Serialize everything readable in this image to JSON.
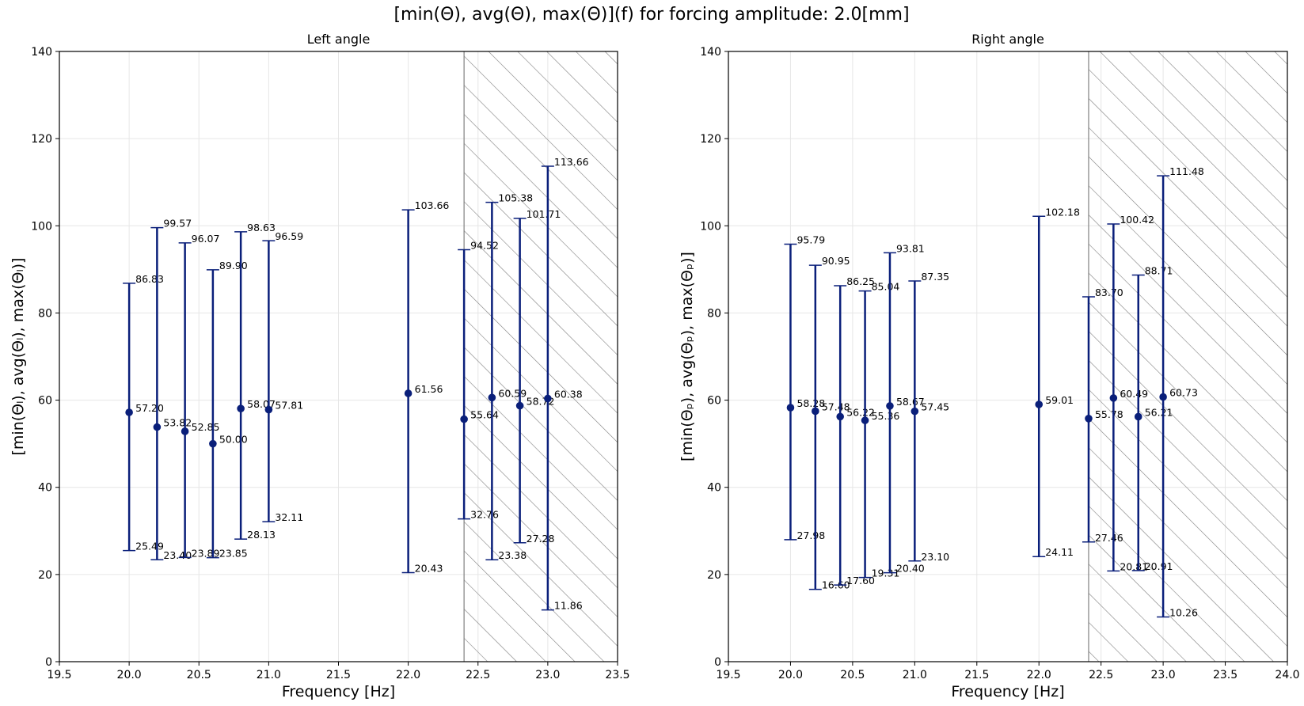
{
  "figure": {
    "suptitle": "[min(Θ), avg(Θ), max(Θ)](f) for forcing amplitude: 2.0[mm]"
  },
  "colors": {
    "series": "#0a1f7a",
    "hatch": "#808080",
    "grid": "#e6e6e6",
    "axes": "#000000"
  },
  "chart_data": [
    {
      "type": "scatter",
      "title": "Left angle",
      "xlabel": "Frequency [Hz]",
      "ylabel": "[min(Θₗ), avg(Θₗ), max(Θₗ)]",
      "xlim": [
        19.5,
        23.5
      ],
      "ylim": [
        0,
        140
      ],
      "xticks": [
        "19.5",
        "20.0",
        "20.5",
        "21.0",
        "21.5",
        "22.0",
        "22.5",
        "23.0",
        "23.5"
      ],
      "yticks": [
        "0",
        "20",
        "40",
        "60",
        "80",
        "100",
        "120",
        "140"
      ],
      "grid": true,
      "hatched_region": [
        22.4,
        23.5
      ],
      "points": [
        {
          "x": 20.0,
          "min": 25.49,
          "avg": 57.2,
          "max": 86.83,
          "min_label": "25.49",
          "avg_label": "57.20",
          "max_label": "86.83"
        },
        {
          "x": 20.2,
          "min": 23.4,
          "avg": 53.82,
          "max": 99.57,
          "min_label": "23.40",
          "avg_label": "53.82",
          "max_label": "99.57"
        },
        {
          "x": 20.4,
          "min": 23.89,
          "avg": 52.85,
          "max": 96.07,
          "min_label": "23.89",
          "avg_label": "52.85",
          "max_label": "96.07"
        },
        {
          "x": 20.6,
          "min": 23.85,
          "avg": 50.0,
          "max": 89.9,
          "min_label": "23.85",
          "avg_label": "50.00",
          "max_label": "89.90"
        },
        {
          "x": 20.8,
          "min": 28.13,
          "avg": 58.07,
          "max": 98.63,
          "min_label": "28.13",
          "avg_label": "58.07",
          "max_label": "98.63"
        },
        {
          "x": 21.0,
          "min": 32.11,
          "avg": 57.81,
          "max": 96.59,
          "min_label": "32.11",
          "avg_label": "57.81",
          "max_label": "96.59"
        },
        {
          "x": 22.0,
          "min": 20.43,
          "avg": 61.56,
          "max": 103.66,
          "min_label": "20.43",
          "avg_label": "61.56",
          "max_label": "103.66"
        },
        {
          "x": 22.4,
          "min": 32.76,
          "avg": 55.64,
          "max": 94.52,
          "min_label": "32.76",
          "avg_label": "55.64",
          "max_label": "94.52"
        },
        {
          "x": 22.6,
          "min": 23.38,
          "avg": 60.59,
          "max": 105.38,
          "min_label": "23.38",
          "avg_label": "60.59",
          "max_label": "105.38"
        },
        {
          "x": 22.8,
          "min": 27.28,
          "avg": 58.72,
          "max": 101.71,
          "min_label": "27.28",
          "avg_label": "58.72",
          "max_label": "101.71"
        },
        {
          "x": 23.0,
          "min": 11.86,
          "avg": 60.38,
          "max": 113.66,
          "min_label": "11.86",
          "avg_label": "60.38",
          "max_label": "113.66"
        }
      ]
    },
    {
      "type": "scatter",
      "title": "Right angle",
      "xlabel": "Frequency [Hz]",
      "ylabel": "[min(Θₚ), avg(Θₚ), max(Θₚ)]",
      "xlim": [
        19.5,
        24.0
      ],
      "ylim": [
        0,
        140
      ],
      "xticks": [
        "19.5",
        "20.0",
        "20.5",
        "21.0",
        "21.5",
        "22.0",
        "22.5",
        "23.0",
        "23.5",
        "24.0"
      ],
      "yticks": [
        "0",
        "20",
        "40",
        "60",
        "80",
        "100",
        "120",
        "140"
      ],
      "grid": true,
      "hatched_region": [
        22.4,
        24.0
      ],
      "points": [
        {
          "x": 20.0,
          "min": 27.98,
          "avg": 58.28,
          "max": 95.79,
          "min_label": "27.98",
          "avg_label": "58.28",
          "max_label": "95.79"
        },
        {
          "x": 20.2,
          "min": 16.6,
          "avg": 57.48,
          "max": 90.95,
          "min_label": "16.60",
          "avg_label": "57.48",
          "max_label": "90.95"
        },
        {
          "x": 20.4,
          "min": 17.6,
          "avg": 56.22,
          "max": 86.25,
          "min_label": "17.60",
          "avg_label": "56.22",
          "max_label": "86.25"
        },
        {
          "x": 20.6,
          "min": 19.31,
          "avg": 55.36,
          "max": 85.04,
          "min_label": "19.31",
          "avg_label": "55.36",
          "max_label": "85.04"
        },
        {
          "x": 20.8,
          "min": 20.4,
          "avg": 58.67,
          "max": 93.81,
          "min_label": "20.40",
          "avg_label": "58.67",
          "max_label": "93.81"
        },
        {
          "x": 21.0,
          "min": 23.1,
          "avg": 57.45,
          "max": 87.35,
          "min_label": "23.10",
          "avg_label": "57.45",
          "max_label": "87.35"
        },
        {
          "x": 22.0,
          "min": 24.11,
          "avg": 59.01,
          "max": 102.18,
          "min_label": "24.11",
          "avg_label": "59.01",
          "max_label": "102.18"
        },
        {
          "x": 22.4,
          "min": 27.46,
          "avg": 55.78,
          "max": 83.7,
          "min_label": "27.46",
          "avg_label": "55.78",
          "max_label": "83.70"
        },
        {
          "x": 22.6,
          "min": 20.81,
          "avg": 60.49,
          "max": 100.42,
          "min_label": "20.81",
          "avg_label": "60.49",
          "max_label": "100.42"
        },
        {
          "x": 22.8,
          "min": 20.91,
          "avg": 56.21,
          "max": 88.71,
          "min_label": "20.91",
          "avg_label": "56.21",
          "max_label": "88.71"
        },
        {
          "x": 23.0,
          "min": 10.26,
          "avg": 60.73,
          "max": 111.48,
          "min_label": "10.26",
          "avg_label": "60.73",
          "max_label": "111.48"
        }
      ]
    }
  ]
}
